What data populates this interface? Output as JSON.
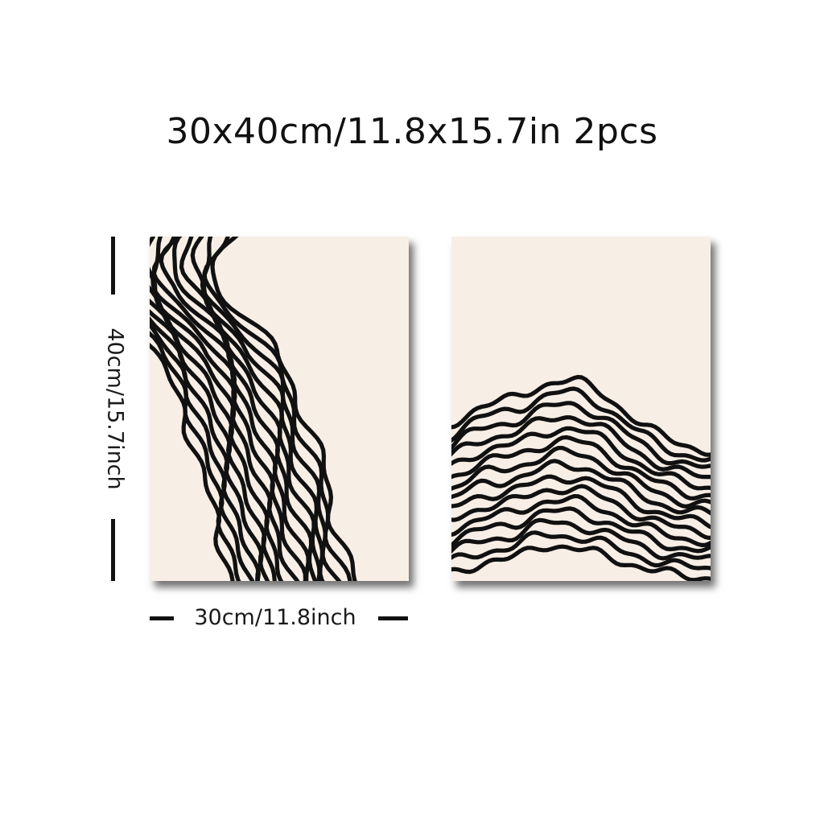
{
  "title": "30x40cm/11.8x15.7in 2pcs",
  "dimensions": {
    "height_label": "40cm/15.7inch",
    "width_label": "30cm/11.8inch"
  },
  "panels": [
    {
      "name": "left-poster"
    },
    {
      "name": "right-poster"
    }
  ],
  "colors": {
    "paper": "#f7efe6",
    "ink": "#111111",
    "background": "#ffffff"
  }
}
